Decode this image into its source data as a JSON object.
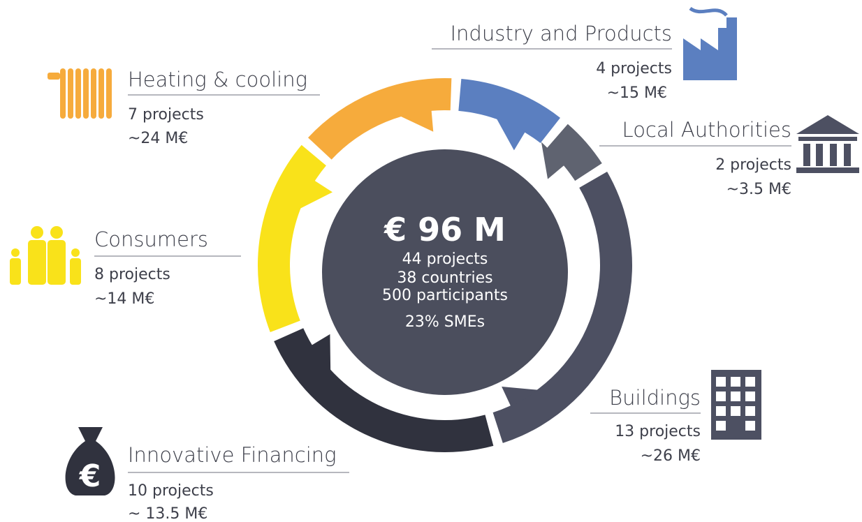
{
  "center": {
    "title": "€ 96 M",
    "lines": [
      "44 projects",
      "38 countries",
      "500 participants",
      "23% SMEs"
    ]
  },
  "sectors": [
    {
      "name": "Industry and Products",
      "projects": "4 projects",
      "funding": "~15 M€"
    },
    {
      "name": "Local Authorities",
      "projects": "2 projects",
      "funding": "~3.5 M€"
    },
    {
      "name": "Buildings",
      "projects": "13 projects",
      "funding": "~26 M€"
    },
    {
      "name": "Innovative Financing",
      "projects": "10 projects",
      "funding": "~ 13.5 M€"
    },
    {
      "name": "Consumers",
      "projects": "8 projects",
      "funding": "~14 M€"
    },
    {
      "name": "Heating & cooling",
      "projects": "7 projects",
      "funding": "~24 M€"
    }
  ]
}
